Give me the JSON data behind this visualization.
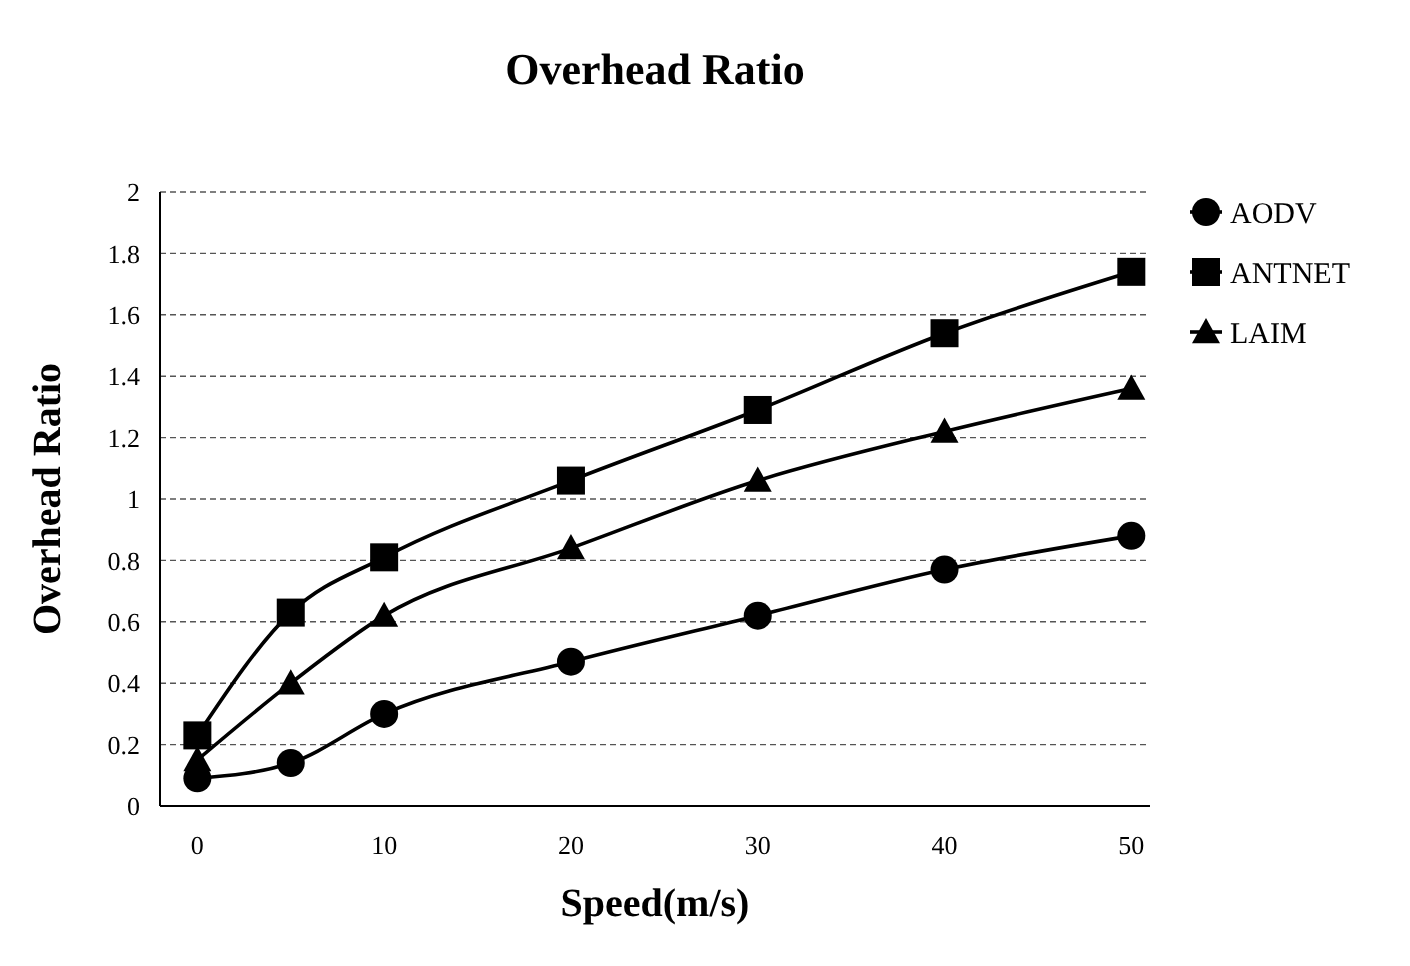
{
  "chart_data": {
    "type": "line",
    "title": "Overhead Ratio",
    "xlabel": "Speed(m/s)",
    "ylabel": "Overhead Ratio",
    "x": [
      0,
      5,
      10,
      20,
      30,
      40,
      50
    ],
    "series": [
      {
        "name": "AODV",
        "color": "#000000",
        "marker": "circle",
        "values": [
          0.09,
          0.14,
          0.3,
          0.47,
          0.62,
          0.77,
          0.88
        ]
      },
      {
        "name": "ANTNET",
        "color": "#000000",
        "marker": "square",
        "values": [
          0.23,
          0.63,
          0.81,
          1.06,
          1.29,
          1.54,
          1.74
        ]
      },
      {
        "name": "LAIM",
        "color": "#000000",
        "marker": "triangle",
        "values": [
          0.15,
          0.4,
          0.62,
          0.84,
          1.06,
          1.22,
          1.36
        ]
      }
    ],
    "xlim": [
      -2,
      51
    ],
    "xticks": [
      0,
      10,
      20,
      30,
      40,
      50
    ],
    "ylim": [
      0,
      2
    ],
    "yticks": [
      0,
      0.2,
      0.4,
      0.6,
      0.8,
      1,
      1.2,
      1.4,
      1.6,
      1.8,
      2
    ],
    "grid": "y",
    "legend": "top right"
  }
}
